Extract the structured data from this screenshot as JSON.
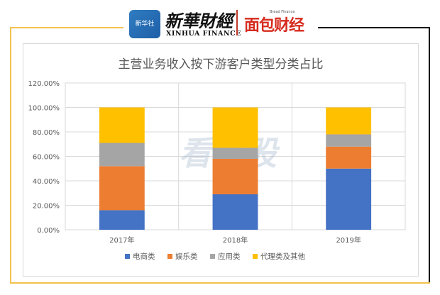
{
  "header": {
    "logo_text": "新华社",
    "brand_cn": "新華財經",
    "brand_en": "XINHUA FINANCE",
    "partner": "面包财经",
    "partner_small": "Bread Finance"
  },
  "watermark": "看新股",
  "colors": {
    "电商类": "#4472c4",
    "娱乐类": "#ed7d31",
    "应用类": "#a5a5a5",
    "代理类及其他": "#ffc000",
    "frame_gold": "#f2c14e",
    "partner_red": "#d62b1e"
  },
  "chart_data": {
    "type": "bar",
    "stacked": true,
    "title": "主营业务收入按下游客户类型分类占比",
    "categories": [
      "2017年",
      "2018年",
      "2019年"
    ],
    "series": [
      {
        "name": "电商类",
        "values": [
          16,
          29,
          50
        ]
      },
      {
        "name": "娱乐类",
        "values": [
          36,
          29,
          18
        ]
      },
      {
        "name": "应用类",
        "values": [
          19,
          9,
          10
        ]
      },
      {
        "name": "代理类及其他",
        "values": [
          29,
          33,
          22
        ]
      }
    ],
    "yticks": [
      "0.00%",
      "20.00%",
      "40.00%",
      "60.00%",
      "80.00%",
      "100.00%",
      "120.00%"
    ],
    "ylim": [
      0,
      120
    ],
    "grid": true,
    "legend": "bottom"
  }
}
